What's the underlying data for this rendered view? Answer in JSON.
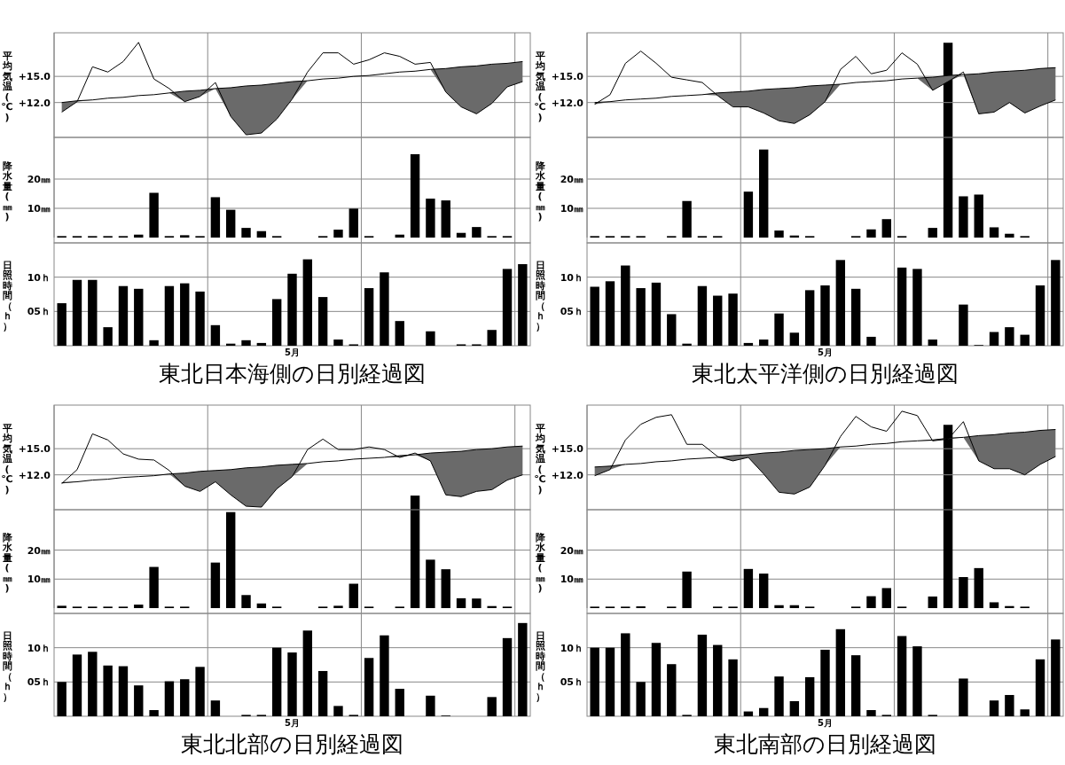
{
  "chart_data": [
    {
      "type": "line",
      "ylabel": "平均気温(℃)",
      "categories": [
        null,
        null,
        null,
        null,
        null,
        null,
        null,
        null,
        null,
        null,
        null,
        null,
        null,
        null,
        null,
        null,
        null,
        null,
        null,
        null,
        null,
        null,
        null,
        null,
        null,
        null,
        null,
        null,
        null,
        null,
        null
      ],
      "ylim": [
        8,
        20
      ],
      "yticks": [
        {
          "value": 15,
          "label": "+15.0"
        },
        {
          "value": 12,
          "label": "+12.0"
        }
      ],
      "grid": true,
      "series": [
        {
          "color": "#000000",
          "values": [
            10.9,
            12.1,
            16.1,
            15.5,
            16.7,
            18.9,
            14.7,
            13.6,
            12.1,
            12.7,
            14.3,
            10.4,
            8.3,
            8.5,
            10.1,
            12.4,
            15.5,
            17.7,
            17.7,
            16.4,
            16.9,
            17.7,
            17.3,
            16.4,
            16.6,
            13.2,
            11.5,
            10.7,
            11.9,
            13.8,
            14.4
          ]
        },
        {
          "color": "#000000",
          "values": [
            12.0,
            12.2,
            12.3,
            12.5,
            12.6,
            12.8,
            12.9,
            13.1,
            13.3,
            13.4,
            13.6,
            13.7,
            13.9,
            14.0,
            14.2,
            14.4,
            14.5,
            14.7,
            14.8,
            15.0,
            15.1,
            15.3,
            15.5,
            15.6,
            15.8,
            15.9,
            16.1,
            16.2,
            16.4,
            16.5,
            16.7
          ],
          "lower": [
            10.9,
            12.1,
            12.3,
            12.5,
            12.6,
            12.8,
            12.9,
            13.1,
            12.1,
            12.7,
            13.6,
            10.4,
            8.3,
            8.5,
            10.1,
            12.4,
            14.5,
            14.7,
            14.8,
            15.0,
            15.1,
            15.3,
            15.5,
            15.6,
            15.8,
            13.2,
            11.5,
            10.7,
            11.9,
            13.8,
            14.4
          ],
          "upper": [
            12.0,
            12.2,
            12.3,
            12.5,
            12.6,
            12.8,
            12.9,
            13.1,
            13.3,
            13.4,
            13.6,
            13.7,
            13.9,
            14.0,
            14.2,
            14.4,
            14.5,
            14.7,
            14.8,
            15.0,
            15.1,
            15.3,
            15.5,
            15.6,
            15.8,
            15.9,
            16.1,
            16.2,
            16.4,
            16.5,
            16.7
          ]
        }
      ]
    },
    {
      "type": "bar",
      "ylabel": "降水量(㎜)",
      "categories": [
        null,
        null,
        null,
        null,
        null,
        null,
        null,
        null,
        null,
        null,
        null,
        null,
        null,
        null,
        null,
        null,
        null,
        null,
        null,
        null,
        null,
        null,
        null,
        null,
        null,
        null,
        null,
        null,
        null,
        null,
        null
      ],
      "ylim": [
        0,
        70
      ],
      "yticks": [
        {
          "value": 20,
          "label": "20㎜"
        },
        {
          "value": 10,
          "label": "10㎜"
        }
      ],
      "grid": true,
      "color": "#000000",
      "values": [
        0.5,
        0.5,
        0.5,
        0.5,
        0.5,
        1.0,
        15.3,
        0.5,
        0.8,
        0.5,
        13.8,
        9.5,
        3.3,
        2.2,
        0.5,
        0,
        0,
        0.5,
        2.7,
        9.9,
        0.5,
        0,
        1.0,
        28.5,
        13.3,
        12.7,
        1.6,
        3.6,
        0.5,
        0.5,
        0
      ]
    },
    {
      "type": "bar",
      "title": "東北日本海側の日別経過図",
      "xlabel": "5月",
      "ylabel": "日照時間（ｈ）",
      "categories": [
        null,
        null,
        null,
        null,
        null,
        null,
        null,
        null,
        null,
        null,
        null,
        null,
        null,
        null,
        null,
        null,
        null,
        null,
        null,
        null,
        null,
        null,
        null,
        null,
        null,
        null,
        null,
        null,
        null,
        null,
        null
      ],
      "ylim": [
        0,
        15
      ],
      "yticks": [
        {
          "value": 10,
          "label": "10ｈ"
        },
        {
          "value": 5,
          "label": "05ｈ"
        }
      ],
      "grid": true,
      "color": "#000000",
      "values": [
        6.2,
        9.6,
        9.6,
        2.7,
        8.7,
        8.3,
        0.8,
        8.7,
        9.1,
        7.9,
        3.0,
        0.3,
        0.8,
        0.4,
        6.8,
        10.5,
        12.6,
        7.1,
        0.9,
        0.2,
        8.4,
        10.7,
        3.6,
        0,
        2.1,
        0,
        0.2,
        0.2,
        2.3,
        11.2,
        11.9
      ]
    },
    {
      "type": "line",
      "ylabel": "平均気温(℃)",
      "categories": [
        null,
        null,
        null,
        null,
        null,
        null,
        null,
        null,
        null,
        null,
        null,
        null,
        null,
        null,
        null,
        null,
        null,
        null,
        null,
        null,
        null,
        null,
        null,
        null,
        null,
        null,
        null,
        null,
        null,
        null,
        null
      ],
      "ylim": [
        8,
        20
      ],
      "yticks": [
        {
          "value": 15,
          "label": "+15.0"
        },
        {
          "value": 12,
          "label": "+12.0"
        }
      ],
      "grid": true,
      "series": [
        {
          "color": "#000000",
          "values": [
            11.8,
            12.9,
            16.5,
            17.9,
            16.5,
            14.9,
            14.6,
            14.3,
            12.8,
            11.5,
            11.5,
            10.8,
            9.9,
            9.6,
            10.6,
            12.1,
            15.8,
            17.3,
            15.3,
            15.7,
            17.7,
            16.4,
            13.4,
            14.4,
            15.5,
            10.7,
            10.9,
            12.0,
            10.8,
            11.6,
            12.3
          ]
        },
        {
          "color": "#000000",
          "values": [
            12.0,
            12.1,
            12.3,
            12.4,
            12.5,
            12.7,
            12.8,
            12.9,
            13.1,
            13.2,
            13.3,
            13.5,
            13.6,
            13.7,
            13.9,
            14.0,
            14.1,
            14.3,
            14.4,
            14.5,
            14.7,
            14.8,
            14.9,
            15.1,
            15.2,
            15.3,
            15.5,
            15.6,
            15.7,
            15.9,
            16.0
          ],
          "lower": [
            11.8,
            12.1,
            12.3,
            12.4,
            12.5,
            12.7,
            12.8,
            12.9,
            12.8,
            11.5,
            11.5,
            10.8,
            9.9,
            9.6,
            10.6,
            12.1,
            14.1,
            14.3,
            14.4,
            14.5,
            14.7,
            14.8,
            13.4,
            14.4,
            15.2,
            10.7,
            10.9,
            12.0,
            10.8,
            11.6,
            12.3
          ],
          "upper": [
            12.0,
            12.1,
            12.3,
            12.4,
            12.5,
            12.7,
            12.8,
            12.9,
            13.1,
            13.2,
            13.3,
            13.5,
            13.6,
            13.7,
            13.9,
            14.0,
            14.1,
            14.3,
            14.4,
            14.5,
            14.7,
            14.8,
            14.9,
            15.1,
            15.2,
            15.3,
            15.5,
            15.6,
            15.7,
            15.9,
            16.0
          ]
        }
      ]
    },
    {
      "type": "bar",
      "ylabel": "降水量(㎜)",
      "categories": [
        null,
        null,
        null,
        null,
        null,
        null,
        null,
        null,
        null,
        null,
        null,
        null,
        null,
        null,
        null,
        null,
        null,
        null,
        null,
        null,
        null,
        null,
        null,
        null,
        null,
        null,
        null,
        null,
        null,
        null,
        null
      ],
      "ylim": [
        0,
        70
      ],
      "yticks": [
        {
          "value": 20,
          "label": "20㎜"
        },
        {
          "value": 10,
          "label": "10㎜"
        }
      ],
      "grid": true,
      "color": "#000000",
      "values": [
        0.5,
        0.5,
        0.5,
        0.5,
        0,
        0.5,
        12.5,
        0.5,
        0.5,
        0,
        15.7,
        30.1,
        2.4,
        0.7,
        0.5,
        0,
        0,
        0.5,
        2.8,
        6.3,
        0.5,
        0,
        3.3,
        66.6,
        14.1,
        14.7,
        3.5,
        1.3,
        0.5,
        0,
        0
      ]
    },
    {
      "type": "bar",
      "title": "東北太平洋側の日別経過図",
      "xlabel": "5月",
      "ylabel": "日照時間（ｈ）",
      "categories": [
        null,
        null,
        null,
        null,
        null,
        null,
        null,
        null,
        null,
        null,
        null,
        null,
        null,
        null,
        null,
        null,
        null,
        null,
        null,
        null,
        null,
        null,
        null,
        null,
        null,
        null,
        null,
        null,
        null,
        null,
        null
      ],
      "ylim": [
        0,
        15
      ],
      "yticks": [
        {
          "value": 10,
          "label": "10ｈ"
        },
        {
          "value": 5,
          "label": "05ｈ"
        }
      ],
      "grid": true,
      "color": "#000000",
      "values": [
        8.6,
        9.4,
        11.7,
        8.4,
        9.2,
        4.6,
        0.3,
        8.7,
        7.3,
        7.6,
        0.4,
        0.9,
        4.7,
        1.9,
        8.1,
        8.8,
        12.5,
        8.3,
        1.3,
        0,
        11.4,
        11.2,
        0.9,
        0,
        6.0,
        0.1,
        2.0,
        2.7,
        1.6,
        8.8,
        12.5
      ]
    },
    {
      "type": "line",
      "ylabel": "平均気温(℃)",
      "categories": [
        null,
        null,
        null,
        null,
        null,
        null,
        null,
        null,
        null,
        null,
        null,
        null,
        null,
        null,
        null,
        null,
        null,
        null,
        null,
        null,
        null,
        null,
        null,
        null,
        null,
        null,
        null,
        null,
        null,
        null,
        null
      ],
      "ylim": [
        8,
        20
      ],
      "yticks": [
        {
          "value": 15,
          "label": "+15.0"
        },
        {
          "value": 12,
          "label": "+12.0"
        }
      ],
      "grid": true,
      "series": [
        {
          "color": "#000000",
          "values": [
            11.0,
            12.6,
            16.7,
            16.0,
            14.4,
            13.8,
            13.7,
            12.5,
            10.7,
            10.1,
            11.2,
            9.7,
            8.4,
            8.3,
            10.4,
            11.8,
            14.9,
            16.1,
            14.9,
            14.9,
            15.2,
            14.9,
            14.0,
            14.5,
            13.6,
            9.7,
            9.5,
            10.1,
            10.3,
            11.4,
            12.0
          ]
        },
        {
          "color": "#000000",
          "values": [
            11.1,
            11.2,
            11.4,
            11.5,
            11.7,
            11.8,
            11.9,
            12.1,
            12.2,
            12.4,
            12.5,
            12.6,
            12.8,
            12.9,
            13.1,
            13.2,
            13.3,
            13.5,
            13.6,
            13.8,
            13.9,
            14.0,
            14.2,
            14.3,
            14.5,
            14.6,
            14.7,
            14.9,
            15.0,
            15.2,
            15.3
          ],
          "lower": [
            11.0,
            11.2,
            11.4,
            11.5,
            11.7,
            11.8,
            11.9,
            12.1,
            10.7,
            10.1,
            11.2,
            9.7,
            8.4,
            8.3,
            10.4,
            11.8,
            13.3,
            13.5,
            13.6,
            13.8,
            13.9,
            14.0,
            14.0,
            14.3,
            13.6,
            9.7,
            9.5,
            10.1,
            10.3,
            11.4,
            12.0
          ],
          "upper": [
            11.1,
            11.2,
            11.4,
            11.5,
            11.7,
            11.8,
            11.9,
            12.1,
            12.2,
            12.4,
            12.5,
            12.6,
            12.8,
            12.9,
            13.1,
            13.2,
            13.3,
            13.5,
            13.6,
            13.8,
            13.9,
            14.0,
            14.2,
            14.3,
            14.5,
            14.6,
            14.7,
            14.9,
            15.0,
            15.2,
            15.3
          ]
        }
      ]
    },
    {
      "type": "bar",
      "ylabel": "降水量(㎜)",
      "categories": [
        null,
        null,
        null,
        null,
        null,
        null,
        null,
        null,
        null,
        null,
        null,
        null,
        null,
        null,
        null,
        null,
        null,
        null,
        null,
        null,
        null,
        null,
        null,
        null,
        null,
        null,
        null,
        null,
        null,
        null,
        null
      ],
      "ylim": [
        0,
        70
      ],
      "yticks": [
        {
          "value": 20,
          "label": "20㎜"
        },
        {
          "value": 10,
          "label": "10㎜"
        }
      ],
      "grid": true,
      "color": "#000000",
      "values": [
        0.8,
        0.5,
        0.5,
        0.5,
        0.5,
        1.2,
        14.2,
        0.5,
        0.5,
        0,
        15.7,
        33.1,
        4.5,
        1.6,
        0.5,
        0,
        0,
        0.5,
        0.8,
        8.4,
        0.5,
        0,
        0.5,
        38.8,
        16.7,
        13.4,
        3.4,
        3.3,
        0.7,
        0.5,
        0
      ]
    },
    {
      "type": "bar",
      "title": "東北北部の日別経過図",
      "xlabel": "5月",
      "ylabel": "日照時間（ｈ）",
      "categories": [
        null,
        null,
        null,
        null,
        null,
        null,
        null,
        null,
        null,
        null,
        null,
        null,
        null,
        null,
        null,
        null,
        null,
        null,
        null,
        null,
        null,
        null,
        null,
        null,
        null,
        null,
        null,
        null,
        null,
        null,
        null
      ],
      "ylim": [
        0,
        15
      ],
      "yticks": [
        {
          "value": 10,
          "label": "10ｈ"
        },
        {
          "value": 5,
          "label": "05ｈ"
        }
      ],
      "grid": true,
      "color": "#000000",
      "values": [
        5.0,
        9.0,
        9.4,
        7.4,
        7.3,
        4.5,
        0.9,
        5.1,
        5.4,
        7.2,
        2.3,
        0,
        0.2,
        0.2,
        10.0,
        9.3,
        12.5,
        6.6,
        1.5,
        0.2,
        8.5,
        11.8,
        4.0,
        0,
        3.0,
        0.1,
        0,
        0,
        2.8,
        11.4,
        13.6
      ]
    },
    {
      "type": "line",
      "ylabel": "平均気温(℃)",
      "categories": [
        null,
        null,
        null,
        null,
        null,
        null,
        null,
        null,
        null,
        null,
        null,
        null,
        null,
        null,
        null,
        null,
        null,
        null,
        null,
        null,
        null,
        null,
        null,
        null,
        null,
        null,
        null,
        null,
        null,
        null,
        null
      ],
      "ylim": [
        8,
        20
      ],
      "yticks": [
        {
          "value": 15,
          "label": "+15.0"
        },
        {
          "value": 12,
          "label": "+12.0"
        }
      ],
      "grid": true,
      "series": [
        {
          "color": "#000000",
          "values": [
            11.9,
            12.6,
            16.0,
            17.8,
            18.6,
            18.9,
            15.5,
            15.5,
            14.1,
            13.6,
            14.0,
            12.1,
            10.0,
            9.8,
            10.6,
            13.1,
            16.4,
            18.7,
            17.5,
            17.0,
            19.3,
            18.8,
            15.9,
            16.1,
            18.1,
            13.6,
            12.7,
            12.7,
            12.0,
            13.2,
            14.1
          ]
        },
        {
          "color": "#000000",
          "values": [
            12.9,
            13.0,
            13.2,
            13.3,
            13.5,
            13.6,
            13.8,
            13.9,
            14.0,
            14.2,
            14.3,
            14.5,
            14.6,
            14.8,
            14.9,
            15.0,
            15.2,
            15.3,
            15.5,
            15.6,
            15.8,
            15.9,
            16.0,
            16.2,
            16.3,
            16.5,
            16.6,
            16.8,
            16.9,
            17.1,
            17.2
          ],
          "lower": [
            11.9,
            12.6,
            13.2,
            13.3,
            13.5,
            13.6,
            13.8,
            13.9,
            14.0,
            13.6,
            14.0,
            12.1,
            10.0,
            9.8,
            10.6,
            13.1,
            15.2,
            15.3,
            15.5,
            15.6,
            15.8,
            15.9,
            15.9,
            16.1,
            16.3,
            13.6,
            12.7,
            12.7,
            12.0,
            13.2,
            14.1
          ],
          "upper": [
            12.9,
            13.0,
            13.2,
            13.3,
            13.5,
            13.6,
            13.8,
            13.9,
            14.0,
            14.2,
            14.3,
            14.5,
            14.6,
            14.8,
            14.9,
            15.0,
            15.2,
            15.3,
            15.5,
            15.6,
            15.8,
            15.9,
            16.0,
            16.2,
            16.3,
            16.5,
            16.6,
            16.8,
            16.9,
            17.1,
            17.2
          ]
        }
      ]
    },
    {
      "type": "bar",
      "ylabel": "降水量(㎜)",
      "categories": [
        null,
        null,
        null,
        null,
        null,
        null,
        null,
        null,
        null,
        null,
        null,
        null,
        null,
        null,
        null,
        null,
        null,
        null,
        null,
        null,
        null,
        null,
        null,
        null,
        null,
        null,
        null,
        null,
        null,
        null,
        null
      ],
      "ylim": [
        0,
        70
      ],
      "yticks": [
        {
          "value": 20,
          "label": "20㎜"
        },
        {
          "value": 10,
          "label": "10㎜"
        }
      ],
      "grid": true,
      "color": "#000000",
      "values": [
        0.5,
        0.5,
        0.5,
        0.6,
        0,
        0.5,
        12.6,
        0,
        0.5,
        0.5,
        13.5,
        11.9,
        1.0,
        1.0,
        0.5,
        0,
        0,
        0.5,
        4.1,
        6.9,
        0.5,
        0,
        4.0,
        63.2,
        10.7,
        13.8,
        2.0,
        0.7,
        0.5,
        0,
        0
      ]
    },
    {
      "type": "bar",
      "title": "東北南部の日別経過図",
      "xlabel": "5月",
      "ylabel": "日照時間（ｈ）",
      "categories": [
        null,
        null,
        null,
        null,
        null,
        null,
        null,
        null,
        null,
        null,
        null,
        null,
        null,
        null,
        null,
        null,
        null,
        null,
        null,
        null,
        null,
        null,
        null,
        null,
        null,
        null,
        null,
        null,
        null,
        null,
        null
      ],
      "ylim": [
        0,
        15
      ],
      "yticks": [
        {
          "value": 10,
          "label": "10ｈ"
        },
        {
          "value": 5,
          "label": "05ｈ"
        }
      ],
      "grid": true,
      "color": "#000000",
      "values": [
        10.0,
        10.0,
        12.1,
        5.0,
        10.7,
        7.6,
        0.2,
        11.9,
        10.4,
        8.3,
        0.7,
        1.2,
        5.8,
        2.2,
        5.7,
        9.7,
        12.7,
        8.9,
        0.9,
        0.2,
        11.7,
        10.2,
        0.2,
        0,
        5.5,
        0,
        2.3,
        3.1,
        1.0,
        8.3,
        11.2
      ]
    }
  ]
}
